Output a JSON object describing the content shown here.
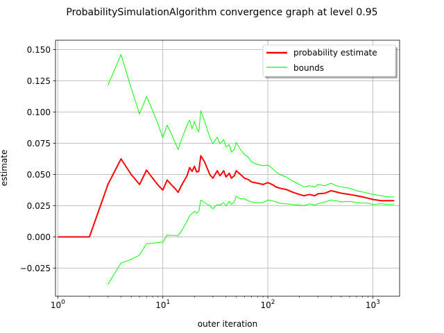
{
  "chart_data": {
    "type": "line",
    "title": "ProbabilitySimulationAlgorithm convergence graph at level 0.95",
    "xlabel": "outer iteration",
    "ylabel": "estimate",
    "xscale": "log",
    "xlim": [
      0.95,
      1800
    ],
    "ylim": [
      -0.0475,
      0.1575
    ],
    "xticks": [
      {
        "value": 1,
        "base": "10",
        "exp": "0"
      },
      {
        "value": 10,
        "base": "10",
        "exp": "1"
      },
      {
        "value": 100,
        "base": "10",
        "exp": "2"
      },
      {
        "value": 1000,
        "base": "10",
        "exp": "3"
      }
    ],
    "yticks": [
      {
        "value": 0.15,
        "label": "0.150"
      },
      {
        "value": 0.125,
        "label": "0.125"
      },
      {
        "value": 0.1,
        "label": "0.100"
      },
      {
        "value": 0.075,
        "label": "0.075"
      },
      {
        "value": 0.05,
        "label": "0.050"
      },
      {
        "value": 0.025,
        "label": "0.025"
      },
      {
        "value": 0.0,
        "label": "0.000"
      },
      {
        "value": -0.025,
        "label": "−0.025"
      }
    ],
    "grid": true,
    "legend_position": "top-right",
    "series": [
      {
        "name": "probability estimate",
        "color": "#ff0000",
        "linewidth": 2,
        "x": [
          1,
          2,
          3,
          4,
          5,
          6,
          7,
          8,
          9,
          10,
          11,
          12,
          13,
          14,
          15,
          17,
          18,
          19,
          20,
          21,
          22,
          23,
          25,
          28,
          30,
          33,
          35,
          38,
          40,
          43,
          45,
          48,
          50,
          55,
          60,
          65,
          70,
          80,
          90,
          100,
          110,
          120,
          130,
          150,
          170,
          200,
          220,
          250,
          280,
          300,
          350,
          400,
          450,
          500,
          600,
          700,
          800,
          900,
          1000,
          1200,
          1400,
          1600
        ],
        "y": [
          0.0,
          0.0,
          0.042,
          0.0625,
          0.05,
          0.042,
          0.0535,
          0.047,
          0.0415,
          0.0375,
          0.0455,
          0.042,
          0.039,
          0.0357,
          0.041,
          0.049,
          0.0555,
          0.0525,
          0.0565,
          0.052,
          0.0525,
          0.065,
          0.06,
          0.05,
          0.047,
          0.053,
          0.049,
          0.053,
          0.048,
          0.051,
          0.047,
          0.049,
          0.053,
          0.05,
          0.047,
          0.046,
          0.044,
          0.043,
          0.042,
          0.0435,
          0.042,
          0.04,
          0.039,
          0.038,
          0.036,
          0.034,
          0.033,
          0.034,
          0.033,
          0.0345,
          0.035,
          0.037,
          0.036,
          0.035,
          0.034,
          0.033,
          0.032,
          0.031,
          0.03,
          0.029,
          0.029,
          0.029
        ]
      },
      {
        "name": "bounds",
        "color": "#00ff00",
        "linewidth": 1,
        "x": [
          3,
          4,
          5,
          6,
          7,
          8,
          9,
          10,
          11,
          12,
          13,
          14,
          15,
          17,
          18,
          19,
          20,
          21,
          22,
          23,
          25,
          28,
          30,
          33,
          35,
          38,
          40,
          43,
          45,
          48,
          50,
          55,
          60,
          65,
          70,
          80,
          90,
          100,
          110,
          120,
          130,
          150,
          170,
          200,
          220,
          250,
          280,
          300,
          350,
          400,
          450,
          500,
          600,
          700,
          800,
          900,
          1000,
          1200,
          1400,
          1600
        ],
        "y": [
          0.1215,
          0.146,
          0.119,
          0.0985,
          0.1125,
          0.101,
          0.0905,
          0.0795,
          0.0895,
          0.083,
          0.076,
          0.07,
          0.0775,
          0.0895,
          0.0935,
          0.0865,
          0.0925,
          0.087,
          0.084,
          0.101,
          0.0925,
          0.08,
          0.0745,
          0.08,
          0.0745,
          0.078,
          0.072,
          0.074,
          0.068,
          0.07,
          0.0755,
          0.07,
          0.066,
          0.064,
          0.06,
          0.058,
          0.057,
          0.0575,
          0.055,
          0.052,
          0.05,
          0.048,
          0.045,
          0.042,
          0.04,
          0.041,
          0.04,
          0.042,
          0.041,
          0.043,
          0.041,
          0.04,
          0.039,
          0.037,
          0.036,
          0.035,
          0.034,
          0.033,
          0.032,
          0.032
        ]
      },
      {
        "color": "#00ff00",
        "linewidth": 1,
        "x": [
          3,
          4,
          5,
          6,
          7,
          8,
          9,
          10,
          11,
          12,
          13,
          14,
          15,
          17,
          18,
          19,
          20,
          21,
          22,
          23,
          25,
          28,
          30,
          33,
          35,
          38,
          40,
          43,
          45,
          48,
          50,
          55,
          60,
          65,
          70,
          80,
          90,
          100,
          110,
          120,
          130,
          150,
          170,
          200,
          220,
          250,
          280,
          300,
          350,
          400,
          450,
          500,
          600,
          700,
          800,
          900,
          1000,
          1200,
          1400,
          1600
        ],
        "y": [
          -0.038,
          -0.021,
          -0.018,
          -0.0145,
          -0.0055,
          -0.005,
          -0.0045,
          -0.0042,
          0.0015,
          0.0012,
          0.0012,
          0.001,
          0.0045,
          0.0125,
          0.017,
          0.0185,
          0.0205,
          0.019,
          0.0205,
          0.0295,
          0.0275,
          0.025,
          0.0225,
          0.026,
          0.0255,
          0.0275,
          0.025,
          0.0285,
          0.026,
          0.028,
          0.0325,
          0.0305,
          0.0305,
          0.029,
          0.028,
          0.0275,
          0.0275,
          0.0295,
          0.029,
          0.028,
          0.027,
          0.0265,
          0.026,
          0.0255,
          0.025,
          0.0265,
          0.0255,
          0.0265,
          0.028,
          0.0295,
          0.029,
          0.028,
          0.0285,
          0.0275,
          0.027,
          0.027,
          0.026,
          0.0265,
          0.026,
          0.026
        ]
      }
    ]
  }
}
